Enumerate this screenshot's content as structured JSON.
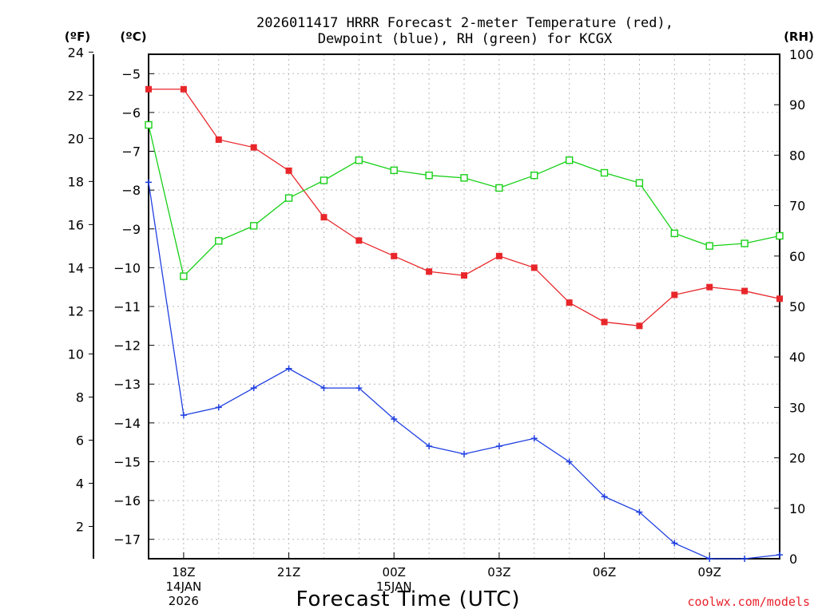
{
  "chart_data": {
    "type": "line",
    "title_line1": "2026011417 HRRR Forecast 2-meter Temperature (red),",
    "title_line2": "Dewpoint (blue), RH (green) for KCGX",
    "unit_f": "(ºF)",
    "unit_c": "(ºC)",
    "unit_rh": "(RH)",
    "xlabel": "Forecast Time (UTC)",
    "credit": "coolwx.com/models",
    "x_hours": [
      17,
      18,
      19,
      20,
      21,
      22,
      23,
      24,
      25,
      26,
      27,
      28,
      29,
      30,
      31,
      32,
      33,
      34,
      35
    ],
    "x_range": [
      17,
      35
    ],
    "x_ticks": [
      {
        "hour": 18,
        "lines": [
          "18Z",
          "14JAN",
          "2026"
        ]
      },
      {
        "hour": 21,
        "lines": [
          "21Z"
        ]
      },
      {
        "hour": 24,
        "lines": [
          "00Z",
          "15JAN"
        ]
      },
      {
        "hour": 27,
        "lines": [
          "03Z"
        ]
      },
      {
        "hour": 30,
        "lines": [
          "06Z"
        ]
      },
      {
        "hour": 33,
        "lines": [
          "09Z"
        ]
      }
    ],
    "c_range": [
      -17.5,
      -4.5
    ],
    "c_ticks": [
      -5,
      -6,
      -7,
      -8,
      -9,
      -10,
      -11,
      -12,
      -13,
      -14,
      -15,
      -16,
      -17
    ],
    "c_tick_labels": [
      "−5",
      "−6",
      "−7",
      "−8",
      "−9",
      "−10",
      "−11",
      "−12",
      "−13",
      "−14",
      "−15",
      "−16",
      "−17"
    ],
    "f_ticks": [
      24,
      22,
      20,
      18,
      16,
      14,
      12,
      10,
      8,
      6,
      4,
      2
    ],
    "rh_range": [
      0,
      100
    ],
    "rh_ticks": [
      100,
      90,
      80,
      70,
      60,
      50,
      40,
      30,
      20,
      10,
      0
    ],
    "series": [
      {
        "name": "Temperature",
        "unit": "C",
        "color": "#e8262a",
        "marker": "filled-square",
        "values": [
          -5.4,
          -5.4,
          -6.7,
          -6.9,
          -7.5,
          -8.7,
          -9.3,
          -9.7,
          -10.1,
          -10.2,
          -9.7,
          -10.0,
          -10.9,
          -11.4,
          -11.5,
          -10.7,
          -10.5,
          -10.6,
          -10.8
        ]
      },
      {
        "name": "Dewpoint",
        "unit": "C",
        "color": "#1f3fe0",
        "marker": "plus",
        "values": [
          -7.8,
          -13.8,
          -13.6,
          -13.1,
          -12.6,
          -13.1,
          -13.1,
          -13.9,
          -14.6,
          -14.8,
          -14.6,
          -14.4,
          -15.0,
          -15.9,
          -16.3,
          -17.1,
          -17.5,
          -17.5,
          -17.4
        ]
      },
      {
        "name": "RH",
        "unit": "%",
        "color": "#18d018",
        "marker": "open-square",
        "values": [
          86,
          56,
          63,
          66,
          71.5,
          75,
          79,
          77,
          76,
          75.5,
          73.5,
          76,
          79,
          76.5,
          74.5,
          64.5,
          62,
          62.5,
          64
        ]
      }
    ]
  }
}
